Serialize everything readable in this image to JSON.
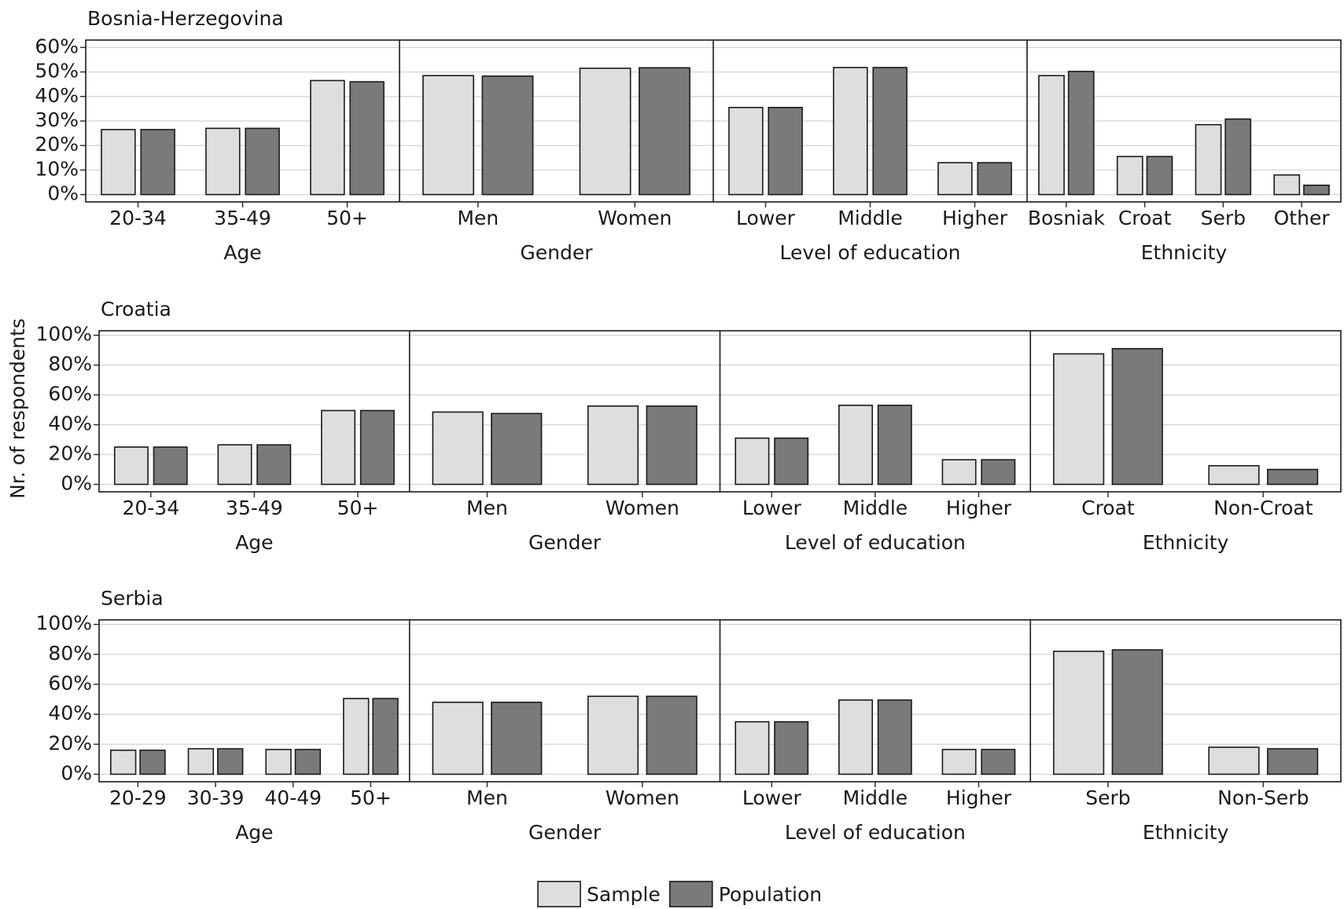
{
  "y_label": "Nr. of respondents",
  "legend": [
    {
      "name": "Sample",
      "color": "#dedede"
    },
    {
      "name": "Population",
      "color": "#7a7a7a"
    }
  ],
  "chart_data": [
    {
      "type": "bar",
      "title": "Bosnia-Herzegovina",
      "ylim": [
        -3,
        63
      ],
      "yticks": [
        {
          "value": 0,
          "label": "0%"
        },
        {
          "value": 10,
          "label": "10%"
        },
        {
          "value": 20,
          "label": "20%"
        },
        {
          "value": 30,
          "label": "30%"
        },
        {
          "value": 40,
          "label": "40%"
        },
        {
          "value": 50,
          "label": "50%"
        },
        {
          "value": 60,
          "label": "60%"
        }
      ],
      "panels": [
        {
          "title": "Age",
          "categories": [
            "20-34",
            "35-49",
            "50+"
          ],
          "series": [
            {
              "values": [
                26.5,
                27,
                46.5
              ]
            },
            {
              "values": [
                26.5,
                27,
                46
              ]
            }
          ]
        },
        {
          "title": "Gender",
          "categories": [
            "Men",
            "Women"
          ],
          "series": [
            {
              "values": [
                48.5,
                51.5
              ]
            },
            {
              "values": [
                48.3,
                51.7
              ]
            }
          ]
        },
        {
          "title": "Level of education",
          "categories": [
            "Lower",
            "Middle",
            "Higher"
          ],
          "series": [
            {
              "values": [
                35.5,
                51.8,
                13
              ]
            },
            {
              "values": [
                35.5,
                51.8,
                13
              ]
            }
          ]
        },
        {
          "title": "Ethnicity",
          "categories": [
            "Bosniak",
            "Croat",
            "Serb",
            "Other"
          ],
          "series": [
            {
              "values": [
                48.5,
                15.5,
                28.5,
                8
              ]
            },
            {
              "values": [
                50.2,
                15.5,
                30.8,
                3.8
              ]
            }
          ]
        }
      ]
    },
    {
      "type": "bar",
      "title": "Croatia",
      "ylim": [
        -5,
        103
      ],
      "yticks": [
        {
          "value": 0,
          "label": "0%"
        },
        {
          "value": 20,
          "label": "20%"
        },
        {
          "value": 40,
          "label": "40%"
        },
        {
          "value": 60,
          "label": "60%"
        },
        {
          "value": 80,
          "label": "80%"
        },
        {
          "value": 100,
          "label": "100%"
        }
      ],
      "panels": [
        {
          "title": "Age",
          "categories": [
            "20-34",
            "35-49",
            "50+"
          ],
          "series": [
            {
              "values": [
                25,
                26.5,
                49.5
              ]
            },
            {
              "values": [
                25,
                26.5,
                49.5
              ]
            }
          ]
        },
        {
          "title": "Gender",
          "categories": [
            "Men",
            "Women"
          ],
          "series": [
            {
              "values": [
                48.5,
                52.5
              ]
            },
            {
              "values": [
                47.5,
                52.5
              ]
            }
          ]
        },
        {
          "title": "Level of education",
          "categories": [
            "Lower",
            "Middle",
            "Higher"
          ],
          "series": [
            {
              "values": [
                31,
                53,
                16.5
              ]
            },
            {
              "values": [
                31,
                53,
                16.5
              ]
            }
          ]
        },
        {
          "title": "Ethnicity",
          "categories": [
            "Croat",
            "Non-Croat"
          ],
          "series": [
            {
              "values": [
                87.5,
                12.5
              ]
            },
            {
              "values": [
                91,
                10
              ]
            }
          ]
        }
      ]
    },
    {
      "type": "bar",
      "title": "Serbia",
      "ylim": [
        -5,
        103
      ],
      "yticks": [
        {
          "value": 0,
          "label": "0%"
        },
        {
          "value": 20,
          "label": "20%"
        },
        {
          "value": 40,
          "label": "40%"
        },
        {
          "value": 60,
          "label": "60%"
        },
        {
          "value": 80,
          "label": "80%"
        },
        {
          "value": 100,
          "label": "100%"
        }
      ],
      "panels": [
        {
          "title": "Age",
          "categories": [
            "20-29",
            "30-39",
            "40-49",
            "50+"
          ],
          "series": [
            {
              "values": [
                16,
                17,
                16.5,
                50.5
              ]
            },
            {
              "values": [
                16,
                17,
                16.5,
                50.5
              ]
            }
          ]
        },
        {
          "title": "Gender",
          "categories": [
            "Men",
            "Women"
          ],
          "series": [
            {
              "values": [
                48,
                52
              ]
            },
            {
              "values": [
                48,
                52
              ]
            }
          ]
        },
        {
          "title": "Level of education",
          "categories": [
            "Lower",
            "Middle",
            "Higher"
          ],
          "series": [
            {
              "values": [
                35,
                49.5,
                16.5
              ]
            },
            {
              "values": [
                35,
                49.5,
                16.5
              ]
            }
          ]
        },
        {
          "title": "Ethnicity",
          "categories": [
            "Serb",
            "Non-Serb"
          ],
          "series": [
            {
              "values": [
                82,
                18
              ]
            },
            {
              "values": [
                83,
                17
              ]
            }
          ]
        }
      ]
    }
  ]
}
